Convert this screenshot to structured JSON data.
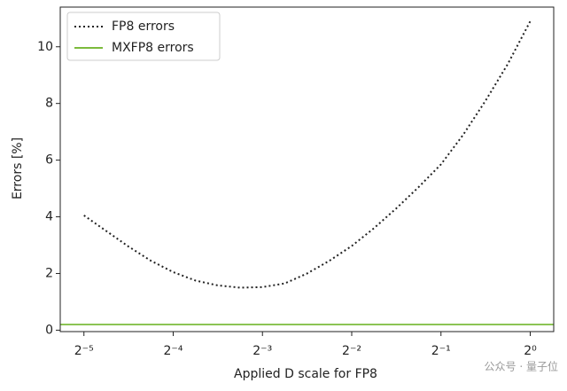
{
  "chart_data": {
    "type": "line",
    "xlabel": "Applied D scale for FP8",
    "ylabel": "Errors [%]",
    "xscale": "log2",
    "xlim": [
      0.026,
      1.2
    ],
    "ylim": [
      -0.05,
      11.4
    ],
    "xticks": [
      {
        "value": 0.03125,
        "label": "2⁻⁵"
      },
      {
        "value": 0.0625,
        "label": "2⁻⁴"
      },
      {
        "value": 0.125,
        "label": "2⁻³"
      },
      {
        "value": 0.25,
        "label": "2⁻²"
      },
      {
        "value": 0.5,
        "label": "2⁻¹"
      },
      {
        "value": 1,
        "label": "2⁰"
      }
    ],
    "yticks": [
      0,
      2,
      4,
      6,
      8,
      10
    ],
    "legend": "upper-left",
    "series": [
      {
        "name": "FP8 errors",
        "color": "#222222",
        "style": "dotted",
        "x": [
          0.03125,
          0.03716,
          0.04419,
          0.05256,
          0.0625,
          0.07433,
          0.08839,
          0.10511,
          0.125,
          0.14865,
          0.17678,
          0.21022,
          0.25,
          0.2973,
          0.35355,
          0.42045,
          0.5,
          0.5946,
          0.70711,
          0.8409,
          1
        ],
        "values": [
          4.05,
          3.5,
          2.95,
          2.45,
          2.05,
          1.75,
          1.58,
          1.5,
          1.52,
          1.65,
          2.0,
          2.45,
          2.97,
          3.6,
          4.3,
          5.05,
          5.85,
          6.9,
          8.1,
          9.4,
          10.9
        ]
      },
      {
        "name": "MXFP8 errors",
        "color": "#7cbb3c",
        "style": "solid",
        "x": [
          0.026,
          1.2
        ],
        "values": [
          0.2,
          0.2
        ]
      }
    ],
    "watermark": "公众号 · 量子位"
  }
}
